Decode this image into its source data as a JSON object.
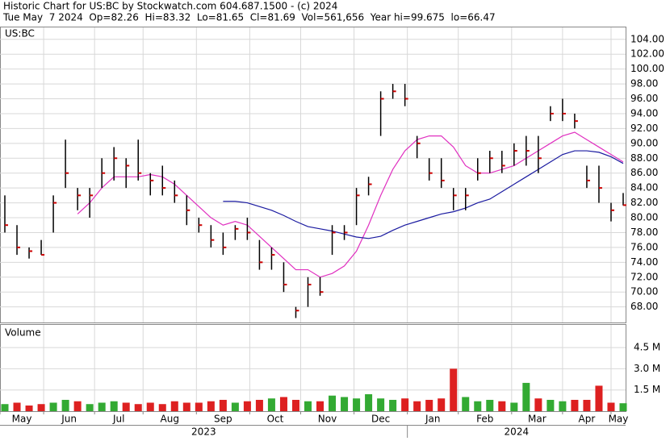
{
  "chart_data": {
    "type": "ohlc",
    "title": "Historic Chart for US:BC by Stockwatch.com 604.687.1500 - (c) 2024",
    "subtitle": "Tue May  7 2024  Op=82.26  Hi=83.32  Lo=81.65  Cl=81.69  Vol=561,656  Year hi=99.675  lo=66.47",
    "symbol_label": "US:BC",
    "x": [
      2,
      7,
      12,
      17,
      22,
      27,
      32,
      37,
      42,
      47,
      52,
      57,
      62,
      67,
      72,
      77,
      82,
      87,
      92,
      97,
      102,
      107,
      112,
      117,
      122,
      127,
      132,
      137,
      142,
      147,
      152,
      157,
      162,
      167,
      172,
      177,
      182,
      187,
      192,
      197,
      202,
      207,
      212,
      217,
      222,
      227,
      232,
      237,
      242,
      247,
      252,
      257
    ],
    "high": [
      83,
      79,
      76,
      77,
      83,
      90.5,
      84,
      84,
      88,
      89.5,
      88,
      90.5,
      86,
      87,
      85,
      83,
      80,
      79,
      78,
      79,
      80,
      77,
      76,
      74,
      68,
      72,
      72,
      79,
      79,
      84,
      85.5,
      97,
      98,
      98,
      91,
      88,
      88,
      84,
      84,
      88,
      89,
      89,
      90,
      91,
      91,
      95,
      96,
      94,
      87,
      87,
      82,
      83.32
    ],
    "low": [
      78,
      75,
      74.5,
      75,
      78,
      84,
      81,
      80,
      84,
      85,
      84,
      85,
      83,
      83,
      82,
      79,
      78,
      76,
      75,
      77,
      77,
      73,
      73,
      70,
      66.5,
      68,
      69.5,
      75,
      77,
      79,
      83,
      91,
      96,
      95,
      88,
      85,
      84,
      81,
      81,
      85,
      86,
      86,
      87,
      87,
      86,
      93,
      93,
      92,
      84,
      82,
      79.5,
      81.65
    ],
    "close": [
      79,
      76,
      75.5,
      75,
      82,
      86,
      83,
      83,
      86,
      88,
      87,
      86,
      85,
      84,
      83,
      81,
      79,
      77,
      76,
      78.5,
      78,
      74,
      75,
      71,
      67.5,
      71,
      70,
      78,
      78,
      83,
      84.5,
      96,
      97,
      96,
      90,
      86,
      85,
      83,
      83,
      86,
      88,
      87,
      89,
      89,
      88,
      94,
      94,
      93,
      85,
      84,
      81,
      81.69
    ],
    "bar_color": "#000000",
    "close_color": "#cc0000",
    "series": [
      {
        "color": "#e030c0",
        "values": [
          null,
          null,
          null,
          null,
          null,
          null,
          80.5,
          82,
          84,
          85.5,
          85.5,
          85.5,
          85.8,
          85.5,
          84.5,
          83,
          81.5,
          80,
          79,
          79.5,
          79,
          77.5,
          76,
          74.5,
          73,
          73,
          72,
          72.5,
          73.5,
          75.5,
          79,
          83,
          86.5,
          89,
          90.5,
          91,
          91,
          89.5,
          87,
          86,
          86,
          86.5,
          87,
          88,
          89,
          90,
          91,
          91.5,
          90.5,
          89.5,
          88.5,
          87.5
        ]
      },
      {
        "color": "#1a1aa0",
        "values": [
          null,
          null,
          null,
          null,
          null,
          null,
          null,
          null,
          null,
          null,
          null,
          null,
          null,
          null,
          null,
          null,
          null,
          null,
          82.2,
          82.2,
          82,
          81.5,
          81,
          80.3,
          79.5,
          78.8,
          78.5,
          78.2,
          77.8,
          77.4,
          77.2,
          77.5,
          78.3,
          79,
          79.5,
          80,
          80.5,
          80.8,
          81.3,
          82,
          82.5,
          83.5,
          84.5,
          85.5,
          86.5,
          87.5,
          88.5,
          89,
          89,
          88.8,
          88.2,
          87.3
        ]
      }
    ],
    "xlim": [
      0,
      258
    ],
    "xticks": [
      {
        "value": 0,
        "label": "May"
      },
      {
        "value": 18,
        "label": "Jun"
      },
      {
        "value": 39,
        "label": "Jul"
      },
      {
        "value": 59,
        "label": "Aug"
      },
      {
        "value": 81,
        "label": "Sep"
      },
      {
        "value": 103,
        "label": "Oct"
      },
      {
        "value": 124,
        "label": "Nov"
      },
      {
        "value": 146,
        "label": "Dec"
      },
      {
        "value": 168,
        "label": "Jan"
      },
      {
        "value": 189,
        "label": "Feb"
      },
      {
        "value": 211,
        "label": "Mar"
      },
      {
        "value": 232,
        "label": "Apr"
      },
      {
        "value": 252,
        "label": "May"
      }
    ],
    "years": [
      {
        "value": 0,
        "label": "2023"
      },
      {
        "value": 168,
        "label": "2024"
      }
    ],
    "ylim": [
      65.9,
      105.6
    ],
    "yticks": [
      {
        "value": 68,
        "label": "68.00"
      },
      {
        "value": 70,
        "label": "70.00"
      },
      {
        "value": 72,
        "label": "72.00"
      },
      {
        "value": 74,
        "label": "74.00"
      },
      {
        "value": 76,
        "label": "76.00"
      },
      {
        "value": 78,
        "label": "78.00"
      },
      {
        "value": 80,
        "label": "80.00"
      },
      {
        "value": 82,
        "label": "82.00"
      },
      {
        "value": 84,
        "label": "84.00"
      },
      {
        "value": 86,
        "label": "86.00"
      },
      {
        "value": 88,
        "label": "88.00"
      },
      {
        "value": 90,
        "label": "90.00"
      },
      {
        "value": 92,
        "label": "92.00"
      },
      {
        "value": 94,
        "label": "94.00"
      },
      {
        "value": 96,
        "label": "96.00"
      },
      {
        "value": 98,
        "label": "98.00"
      },
      {
        "value": 100,
        "label": "100.00"
      },
      {
        "value": 102,
        "label": "102.00"
      },
      {
        "value": 104,
        "label": "104.00"
      }
    ],
    "grid": true,
    "volume_label": "Volume",
    "volume": [
      0.5,
      0.6,
      0.4,
      0.5,
      0.6,
      0.8,
      0.7,
      0.5,
      0.6,
      0.7,
      0.6,
      0.5,
      0.6,
      0.5,
      0.7,
      0.6,
      0.6,
      0.7,
      0.8,
      0.6,
      0.7,
      0.8,
      0.9,
      1.0,
      0.8,
      0.7,
      0.7,
      1.1,
      1.0,
      0.9,
      1.2,
      0.9,
      0.8,
      0.9,
      0.7,
      0.8,
      0.9,
      3.0,
      1.0,
      0.7,
      0.8,
      0.7,
      0.6,
      2.0,
      0.9,
      0.8,
      0.7,
      0.8,
      0.8,
      1.8,
      0.6,
      0.56
    ],
    "volume_up_color": "#33aa33",
    "volume_down_color": "#dd2020",
    "volume_ylim": [
      0,
      6.1
    ],
    "volume_yticks": [
      {
        "value": 1.5,
        "label": "1.5 M"
      },
      {
        "value": 3.0,
        "label": "3.0 M"
      },
      {
        "value": 4.5,
        "label": "4.5 M"
      }
    ]
  }
}
